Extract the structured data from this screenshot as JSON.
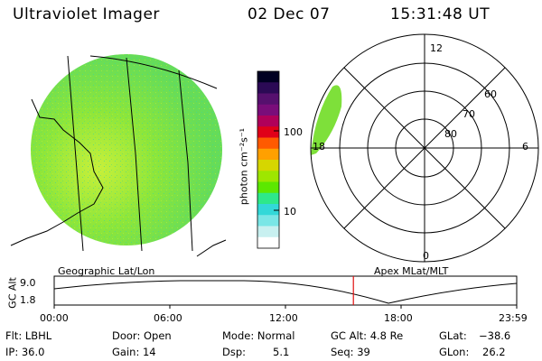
{
  "header": {
    "title": "Ultraviolet Imager",
    "date": "02 Dec 07",
    "time": "15:31:48 UT"
  },
  "colorbar": {
    "label": "photon cm⁻²s⁻¹",
    "ticks": [
      "100",
      "10"
    ],
    "colors": [
      "#000022",
      "#2b0a55",
      "#56106e",
      "#7a0d7a",
      "#b0005a",
      "#e00018",
      "#ff5a00",
      "#ffa000",
      "#d6d600",
      "#9ee600",
      "#5ce800",
      "#2ee88a",
      "#33d8d8",
      "#7ae6e6",
      "#c8f0f0",
      "#ffffff"
    ]
  },
  "image_panel": {
    "caption": "Geographic Lat/Lon",
    "fill_color": "#7ee03a"
  },
  "polar_panel": {
    "caption": "Apex MLat/MLT",
    "mlt_labels": {
      "top": "12",
      "left": "18",
      "right": "6",
      "bottom": "0"
    },
    "lat_labels": [
      "60",
      "70",
      "80"
    ]
  },
  "timeline": {
    "ylabel": "GC Alt",
    "yticks": [
      "9.0",
      "1.8"
    ],
    "xticks": [
      "00:00",
      "06:00",
      "12:00",
      "18:00",
      "23:59"
    ],
    "current_time_fraction": 0.6469,
    "marker_color": "#e01010"
  },
  "info": {
    "filter": "Flt: LBHL",
    "ip": "IP: 36.0",
    "door": "Door: Open",
    "gain": "Gain: 14",
    "mode": "Mode: Normal",
    "dsp_label": "Dsp:",
    "dsp_value": "5.1",
    "gcalt": "GC Alt: 4.8 Re",
    "seq": "Seq: 39",
    "glat_label": "GLat:",
    "glat_value": "−38.6",
    "glon_label": "GLon:",
    "glon_value": "26.2"
  }
}
